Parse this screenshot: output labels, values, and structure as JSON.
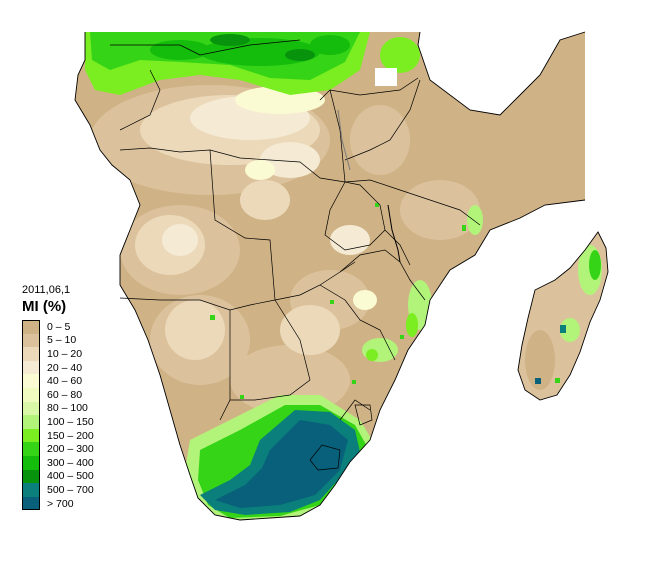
{
  "map": {
    "date": "2011,06,1",
    "legend_title": "MI (%)",
    "legend": [
      {
        "label": "0 – 5",
        "color": "#cfb285"
      },
      {
        "label": "5 – 10",
        "color": "#dcc29c"
      },
      {
        "label": "10 – 20",
        "color": "#ebd9b9"
      },
      {
        "label": "20 – 40",
        "color": "#f5ead3"
      },
      {
        "label": "40 – 60",
        "color": "#fbfbd3"
      },
      {
        "label": "60 – 80",
        "color": "#f0fbc0"
      },
      {
        "label": "80 – 100",
        "color": "#d8f8a8"
      },
      {
        "label": "100 – 150",
        "color": "#b2f47a"
      },
      {
        "label": "150 – 200",
        "color": "#7aee20"
      },
      {
        "label": "200 – 300",
        "color": "#35d417"
      },
      {
        "label": "300 – 400",
        "color": "#14bc0c"
      },
      {
        "label": "400 – 500",
        "color": "#08930d"
      },
      {
        "label": "500 – 700",
        "color": "#0b7f7c"
      },
      {
        "label": "> 700",
        "color": "#08607a"
      }
    ]
  }
}
